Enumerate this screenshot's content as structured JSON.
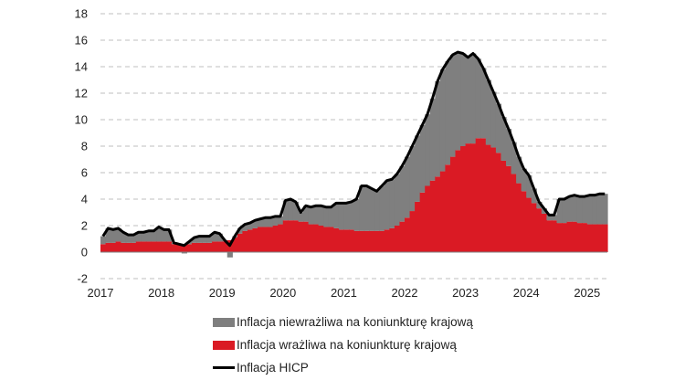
{
  "chart_data": {
    "type": "area",
    "title": "",
    "xlabel": "",
    "ylabel": "",
    "ylim": [
      -2,
      18
    ],
    "yticks": [
      -2,
      0,
      2,
      4,
      6,
      8,
      10,
      12,
      14,
      16,
      18
    ],
    "xlim": [
      "2017-01",
      "2025-05"
    ],
    "xticks": [
      "2017",
      "2018",
      "2019",
      "2020",
      "2021",
      "2022",
      "2023",
      "2024",
      "2025"
    ],
    "grid": "horizontal-dashed",
    "legend_position": "bottom",
    "colors": {
      "insensitive": "#7f7f7f",
      "sensitive": "#da1a24",
      "hicp": "#000000",
      "grid": "#bfbfbf"
    },
    "x": [
      "2017-01",
      "2017-02",
      "2017-03",
      "2017-04",
      "2017-05",
      "2017-06",
      "2017-07",
      "2017-08",
      "2017-09",
      "2017-10",
      "2017-11",
      "2017-12",
      "2018-01",
      "2018-02",
      "2018-03",
      "2018-04",
      "2018-05",
      "2018-06",
      "2018-07",
      "2018-08",
      "2018-09",
      "2018-10",
      "2018-11",
      "2018-12",
      "2019-01",
      "2019-02",
      "2019-03",
      "2019-04",
      "2019-05",
      "2019-06",
      "2019-07",
      "2019-08",
      "2019-09",
      "2019-10",
      "2019-11",
      "2019-12",
      "2020-01",
      "2020-02",
      "2020-03",
      "2020-04",
      "2020-05",
      "2020-06",
      "2020-07",
      "2020-08",
      "2020-09",
      "2020-10",
      "2020-11",
      "2020-12",
      "2021-01",
      "2021-02",
      "2021-03",
      "2021-04",
      "2021-05",
      "2021-06",
      "2021-07",
      "2021-08",
      "2021-09",
      "2021-10",
      "2021-11",
      "2021-12",
      "2022-01",
      "2022-02",
      "2022-03",
      "2022-04",
      "2022-05",
      "2022-06",
      "2022-07",
      "2022-08",
      "2022-09",
      "2022-10",
      "2022-11",
      "2022-12",
      "2023-01",
      "2023-02",
      "2023-03",
      "2023-04",
      "2023-05",
      "2023-06",
      "2023-07",
      "2023-08",
      "2023-09",
      "2023-10",
      "2023-11",
      "2023-12",
      "2024-01",
      "2024-02",
      "2024-03",
      "2024-04",
      "2024-05",
      "2024-06",
      "2024-07",
      "2024-08",
      "2024-09",
      "2024-10",
      "2024-11",
      "2024-12",
      "2025-01",
      "2025-02",
      "2025-03",
      "2025-04"
    ],
    "series": [
      {
        "name": "Inflacja niewrażliwa na koniunkturę krajową",
        "kind": "stacked-area",
        "values": [
          0.6,
          1.1,
          1.0,
          1.0,
          0.8,
          0.6,
          0.6,
          0.7,
          0.7,
          0.8,
          0.8,
          1.1,
          0.9,
          0.9,
          0.1,
          0.0,
          -0.1,
          0.2,
          0.4,
          0.5,
          0.5,
          0.5,
          0.7,
          0.6,
          0.1,
          -0.4,
          0.1,
          0.4,
          0.5,
          0.5,
          0.6,
          0.6,
          0.7,
          0.7,
          0.7,
          0.6,
          1.5,
          1.6,
          1.4,
          0.7,
          1.2,
          1.3,
          1.4,
          1.5,
          1.5,
          1.5,
          1.9,
          2.0,
          2.0,
          2.1,
          2.4,
          3.4,
          3.4,
          3.2,
          3.0,
          3.4,
          3.7,
          3.7,
          3.9,
          4.2,
          4.6,
          4.9,
          5.0,
          5.1,
          5.4,
          6.2,
          7.2,
          7.7,
          7.8,
          7.7,
          7.4,
          7.0,
          6.5,
          6.8,
          6.0,
          5.3,
          4.9,
          4.2,
          3.7,
          3.3,
          2.8,
          2.4,
          2.0,
          1.7,
          1.7,
          1.1,
          0.5,
          0.4,
          0.4,
          0.4,
          1.8,
          1.8,
          1.9,
          2.0,
          2.0,
          2.0,
          2.2,
          2.2,
          2.3,
          2.3
        ]
      },
      {
        "name": "Inflacja wrażliwa na koniunkturę krajową",
        "kind": "stacked-area",
        "values": [
          0.6,
          0.7,
          0.7,
          0.8,
          0.7,
          0.7,
          0.7,
          0.8,
          0.8,
          0.8,
          0.8,
          0.8,
          0.8,
          0.8,
          0.6,
          0.6,
          0.6,
          0.6,
          0.7,
          0.7,
          0.7,
          0.7,
          0.8,
          0.8,
          0.8,
          0.9,
          1.1,
          1.4,
          1.6,
          1.7,
          1.8,
          1.9,
          1.9,
          1.9,
          2.0,
          2.1,
          2.4,
          2.4,
          2.4,
          2.3,
          2.3,
          2.1,
          2.1,
          2.0,
          1.9,
          1.9,
          1.8,
          1.7,
          1.7,
          1.7,
          1.6,
          1.6,
          1.6,
          1.6,
          1.6,
          1.6,
          1.7,
          1.8,
          2.0,
          2.3,
          2.6,
          3.1,
          3.8,
          4.5,
          5.0,
          5.4,
          5.7,
          6.1,
          6.6,
          7.2,
          7.7,
          8.0,
          8.2,
          8.2,
          8.6,
          8.6,
          8.1,
          7.9,
          7.5,
          6.9,
          6.5,
          5.9,
          5.2,
          4.6,
          4.1,
          3.7,
          3.3,
          2.9,
          2.4,
          2.4,
          2.2,
          2.2,
          2.3,
          2.3,
          2.2,
          2.2,
          2.1,
          2.1,
          2.1,
          2.1
        ]
      },
      {
        "name": "Inflacja HICP",
        "kind": "line",
        "values": [
          1.2,
          1.8,
          1.7,
          1.8,
          1.5,
          1.3,
          1.3,
          1.5,
          1.5,
          1.6,
          1.6,
          1.9,
          1.7,
          1.7,
          0.7,
          0.6,
          0.5,
          0.8,
          1.1,
          1.2,
          1.2,
          1.2,
          1.5,
          1.4,
          0.9,
          0.5,
          1.2,
          1.8,
          2.1,
          2.2,
          2.4,
          2.5,
          2.6,
          2.6,
          2.7,
          2.7,
          3.9,
          4.0,
          3.8,
          3.0,
          3.5,
          3.4,
          3.5,
          3.5,
          3.4,
          3.4,
          3.7,
          3.7,
          3.7,
          3.8,
          4.0,
          5.0,
          5.0,
          4.8,
          4.6,
          5.0,
          5.4,
          5.5,
          5.9,
          6.5,
          7.2,
          8.0,
          8.8,
          9.6,
          10.4,
          11.6,
          12.9,
          13.8,
          14.4,
          14.9,
          15.1,
          15.0,
          14.7,
          15.0,
          14.6,
          13.9,
          13.0,
          12.1,
          11.2,
          10.2,
          9.3,
          8.3,
          7.2,
          6.3,
          5.8,
          4.8,
          3.8,
          3.3,
          2.8,
          2.8,
          4.0,
          4.0,
          4.2,
          4.3,
          4.2,
          4.2,
          4.3,
          4.3,
          4.4,
          4.4
        ]
      }
    ]
  },
  "legend": [
    {
      "label": "Inflacja niewrażliwa na koniunkturę krajową",
      "color": "#7f7f7f",
      "marker": "box"
    },
    {
      "label": "Inflacja wrażliwa na koniunkturę krajową",
      "color": "#da1a24",
      "marker": "box"
    },
    {
      "label": "Inflacja HICP",
      "color": "#000000",
      "marker": "line"
    }
  ]
}
